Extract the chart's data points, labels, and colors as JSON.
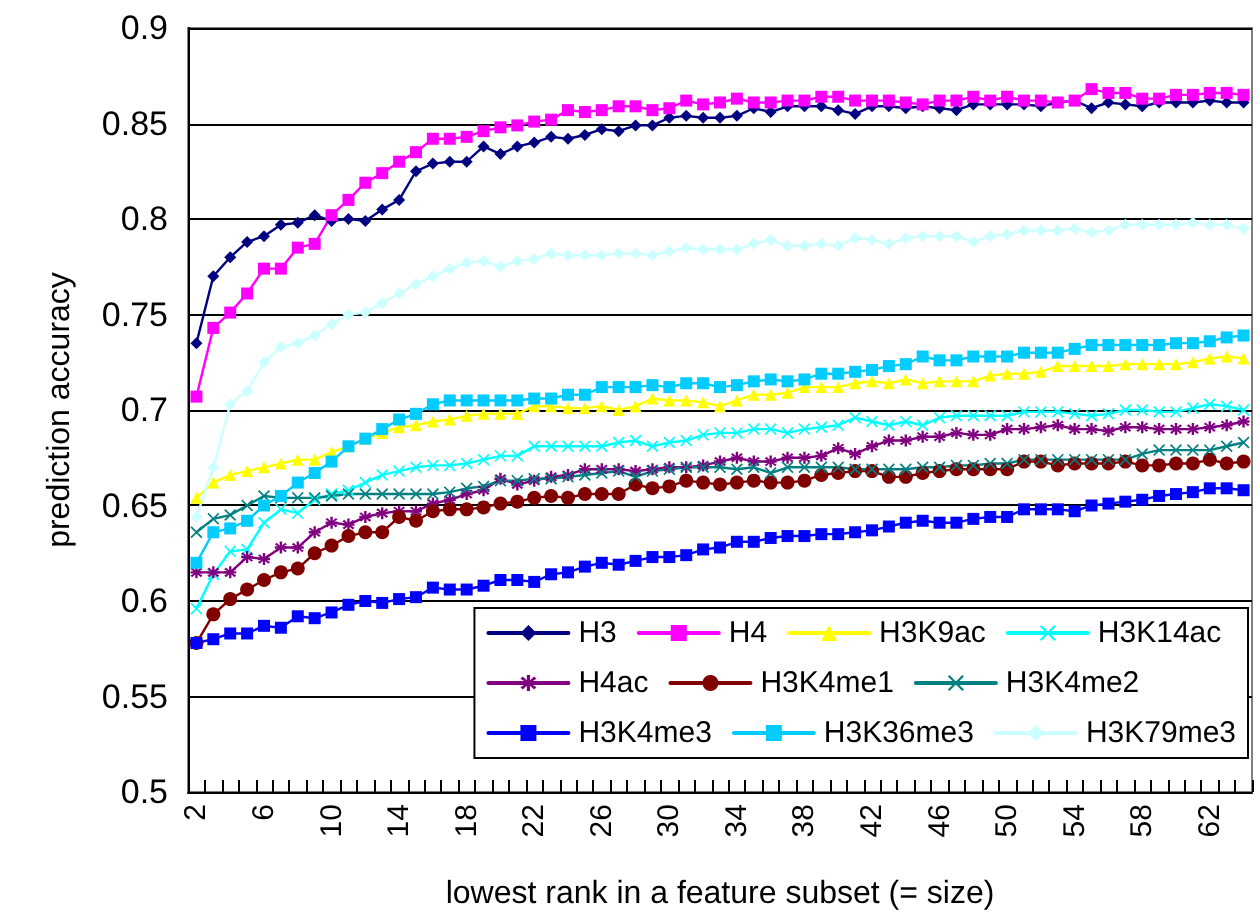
{
  "chart_data": {
    "type": "line",
    "xlabel": "lowest rank in a feature subset (= size)",
    "ylabel": "prediction accuracy",
    "categories": [
      "2",
      null,
      null,
      null,
      "6",
      null,
      null,
      null,
      "10",
      null,
      null,
      null,
      "14",
      null,
      null,
      null,
      "18",
      null,
      null,
      null,
      "22",
      null,
      null,
      null,
      "26",
      null,
      null,
      null,
      "30",
      null,
      null,
      null,
      "34",
      null,
      null,
      null,
      "38",
      null,
      null,
      null,
      "42",
      null,
      null,
      null,
      "46",
      null,
      null,
      null,
      "50",
      null,
      null,
      null,
      "54",
      null,
      null,
      null,
      "58",
      null,
      null,
      null,
      "62",
      null,
      null
    ],
    "ylim": [
      0.5,
      0.9
    ],
    "yticks": [
      0.5,
      0.55,
      0.6,
      0.65,
      0.7,
      0.75,
      0.8,
      0.85,
      0.9
    ],
    "grid": "y",
    "legend": "bottom right",
    "line_style": "solid",
    "series": [
      {
        "name": "H3",
        "color": "#000080",
        "marker": "diamond",
        "values": [
          0.735,
          0.77,
          0.78,
          0.788,
          0.791,
          0.797,
          0.798,
          0.802,
          0.799,
          0.8,
          0.799,
          0.805,
          0.81,
          0.825,
          0.829,
          0.83,
          0.83,
          0.838,
          0.834,
          0.838,
          0.84,
          0.843,
          0.842,
          0.844,
          0.847,
          0.846,
          0.849,
          0.849,
          0.853,
          0.854,
          0.853,
          0.853,
          0.854,
          0.858,
          0.856,
          0.859,
          0.859,
          0.859,
          0.857,
          0.855,
          0.859,
          0.859,
          0.858,
          0.859,
          0.858,
          0.857,
          0.86,
          0.86,
          0.86,
          0.86,
          0.859,
          0.861,
          0.862,
          0.858,
          0.861,
          0.86,
          0.859,
          0.861,
          0.861,
          0.861,
          0.862,
          0.861,
          0.861
        ]
      },
      {
        "name": "H4",
        "color": "#ff00ff",
        "marker": "square",
        "values": [
          0.707,
          0.743,
          0.751,
          0.761,
          0.774,
          0.774,
          0.785,
          0.787,
          0.802,
          0.81,
          0.819,
          0.824,
          0.83,
          0.835,
          0.842,
          0.842,
          0.843,
          0.846,
          0.848,
          0.849,
          0.851,
          0.852,
          0.857,
          0.856,
          0.857,
          0.859,
          0.859,
          0.857,
          0.858,
          0.862,
          0.86,
          0.861,
          0.863,
          0.861,
          0.861,
          0.862,
          0.862,
          0.864,
          0.864,
          0.862,
          0.862,
          0.862,
          0.861,
          0.86,
          0.862,
          0.862,
          0.864,
          0.862,
          0.864,
          0.862,
          0.862,
          0.861,
          0.862,
          0.868,
          0.866,
          0.866,
          0.863,
          0.863,
          0.865,
          0.865,
          0.866,
          0.866,
          0.865
        ]
      },
      {
        "name": "H3K9ac",
        "color": "#ffff00",
        "marker": "triangle",
        "values": [
          0.654,
          0.662,
          0.666,
          0.668,
          0.67,
          0.672,
          0.674,
          0.674,
          0.678,
          0.681,
          0.685,
          0.688,
          0.691,
          0.692,
          0.694,
          0.695,
          0.697,
          0.698,
          0.698,
          0.698,
          0.702,
          0.702,
          0.701,
          0.701,
          0.702,
          0.7,
          0.702,
          0.706,
          0.705,
          0.705,
          0.704,
          0.702,
          0.705,
          0.708,
          0.708,
          0.709,
          0.712,
          0.712,
          0.712,
          0.714,
          0.715,
          0.714,
          0.716,
          0.714,
          0.715,
          0.715,
          0.715,
          0.718,
          0.719,
          0.719,
          0.72,
          0.723,
          0.723,
          0.723,
          0.723,
          0.724,
          0.724,
          0.724,
          0.724,
          0.725,
          0.727,
          0.728,
          0.727
        ]
      },
      {
        "name": "H3K14ac",
        "color": "#00ffff",
        "marker": "cross",
        "values": [
          0.596,
          0.614,
          0.626,
          0.627,
          0.641,
          0.648,
          0.646,
          0.653,
          0.656,
          0.658,
          0.662,
          0.666,
          0.668,
          0.67,
          0.671,
          0.671,
          0.672,
          0.674,
          0.676,
          0.676,
          0.681,
          0.681,
          0.681,
          0.681,
          0.681,
          0.683,
          0.684,
          0.681,
          0.683,
          0.684,
          0.687,
          0.688,
          0.688,
          0.69,
          0.69,
          0.688,
          0.69,
          0.691,
          0.692,
          0.696,
          0.694,
          0.692,
          0.694,
          0.692,
          0.696,
          0.697,
          0.697,
          0.697,
          0.697,
          0.699,
          0.699,
          0.699,
          0.698,
          0.697,
          0.698,
          0.7,
          0.7,
          0.699,
          0.699,
          0.701,
          0.703,
          0.702,
          0.7
        ]
      },
      {
        "name": "H4ac",
        "color": "#800080",
        "marker": "star",
        "values": [
          0.615,
          0.615,
          0.615,
          0.623,
          0.622,
          0.628,
          0.628,
          0.636,
          0.641,
          0.64,
          0.644,
          0.646,
          0.647,
          0.647,
          0.651,
          0.653,
          0.656,
          0.658,
          0.664,
          0.661,
          0.663,
          0.665,
          0.666,
          0.669,
          0.669,
          0.669,
          0.668,
          0.669,
          0.67,
          0.67,
          0.671,
          0.673,
          0.675,
          0.673,
          0.673,
          0.675,
          0.675,
          0.676,
          0.68,
          0.677,
          0.681,
          0.684,
          0.684,
          0.686,
          0.686,
          0.688,
          0.687,
          0.687,
          0.69,
          0.69,
          0.691,
          0.692,
          0.69,
          0.69,
          0.689,
          0.691,
          0.691,
          0.69,
          0.69,
          0.69,
          0.691,
          0.692,
          0.694
        ]
      },
      {
        "name": "H3K4me1",
        "color": "#800000",
        "marker": "circle",
        "values": [
          0.578,
          0.593,
          0.601,
          0.606,
          0.611,
          0.615,
          0.617,
          0.625,
          0.629,
          0.634,
          0.636,
          0.636,
          0.644,
          0.642,
          0.647,
          0.648,
          0.648,
          0.649,
          0.651,
          0.652,
          0.654,
          0.655,
          0.654,
          0.656,
          0.656,
          0.656,
          0.661,
          0.659,
          0.66,
          0.663,
          0.662,
          0.661,
          0.662,
          0.663,
          0.662,
          0.662,
          0.663,
          0.666,
          0.667,
          0.668,
          0.668,
          0.665,
          0.665,
          0.667,
          0.668,
          0.669,
          0.669,
          0.669,
          0.669,
          0.673,
          0.673,
          0.671,
          0.672,
          0.672,
          0.672,
          0.673,
          0.671,
          0.671,
          0.672,
          0.672,
          0.674,
          0.672,
          0.673
        ]
      },
      {
        "name": "H3K4me2",
        "color": "#008080",
        "marker": "cross",
        "values": [
          0.636,
          0.643,
          0.645,
          0.65,
          0.655,
          0.654,
          0.654,
          0.654,
          0.655,
          0.656,
          0.656,
          0.656,
          0.656,
          0.656,
          0.656,
          0.657,
          0.659,
          0.66,
          0.663,
          0.663,
          0.664,
          0.664,
          0.665,
          0.666,
          0.667,
          0.668,
          0.665,
          0.668,
          0.669,
          0.67,
          0.67,
          0.67,
          0.669,
          0.67,
          0.667,
          0.67,
          0.67,
          0.67,
          0.67,
          0.669,
          0.669,
          0.669,
          0.669,
          0.67,
          0.67,
          0.671,
          0.671,
          0.672,
          0.672,
          0.674,
          0.674,
          0.674,
          0.674,
          0.674,
          0.674,
          0.674,
          0.677,
          0.679,
          0.679,
          0.679,
          0.679,
          0.681,
          0.683
        ]
      },
      {
        "name": "H3K4me3",
        "color": "#0000ff",
        "marker": "square",
        "values": [
          0.578,
          0.58,
          0.583,
          0.583,
          0.587,
          0.586,
          0.592,
          0.591,
          0.594,
          0.598,
          0.6,
          0.599,
          0.601,
          0.602,
          0.607,
          0.606,
          0.606,
          0.608,
          0.611,
          0.611,
          0.61,
          0.614,
          0.615,
          0.618,
          0.62,
          0.619,
          0.621,
          0.623,
          0.623,
          0.624,
          0.627,
          0.628,
          0.631,
          0.631,
          0.633,
          0.634,
          0.634,
          0.635,
          0.635,
          0.636,
          0.637,
          0.639,
          0.641,
          0.642,
          0.641,
          0.641,
          0.643,
          0.644,
          0.644,
          0.648,
          0.648,
          0.648,
          0.647,
          0.65,
          0.651,
          0.652,
          0.653,
          0.655,
          0.656,
          0.657,
          0.659,
          0.659,
          0.658
        ]
      },
      {
        "name": "H3K36me3",
        "color": "#00ccff",
        "marker": "square",
        "values": [
          0.62,
          0.636,
          0.638,
          0.642,
          0.65,
          0.655,
          0.662,
          0.667,
          0.673,
          0.681,
          0.685,
          0.69,
          0.695,
          0.698,
          0.703,
          0.705,
          0.705,
          0.705,
          0.705,
          0.705,
          0.706,
          0.706,
          0.708,
          0.708,
          0.712,
          0.712,
          0.712,
          0.713,
          0.712,
          0.714,
          0.714,
          0.712,
          0.713,
          0.715,
          0.716,
          0.715,
          0.716,
          0.719,
          0.719,
          0.72,
          0.721,
          0.723,
          0.724,
          0.728,
          0.726,
          0.726,
          0.728,
          0.728,
          0.728,
          0.73,
          0.73,
          0.73,
          0.732,
          0.734,
          0.734,
          0.734,
          0.734,
          0.734,
          0.735,
          0.735,
          0.736,
          0.738,
          0.739
        ]
      },
      {
        "name": "H3K79me3",
        "color": "#ccffff",
        "marker": "diamond",
        "values": [
          0.644,
          0.67,
          0.703,
          0.71,
          0.725,
          0.733,
          0.735,
          0.739,
          0.745,
          0.75,
          0.751,
          0.756,
          0.761,
          0.766,
          0.77,
          0.774,
          0.777,
          0.778,
          0.775,
          0.778,
          0.779,
          0.782,
          0.781,
          0.781,
          0.781,
          0.782,
          0.782,
          0.781,
          0.783,
          0.785,
          0.784,
          0.784,
          0.784,
          0.787,
          0.789,
          0.786,
          0.786,
          0.787,
          0.786,
          0.79,
          0.789,
          0.787,
          0.79,
          0.791,
          0.791,
          0.791,
          0.788,
          0.791,
          0.792,
          0.794,
          0.794,
          0.794,
          0.795,
          0.793,
          0.794,
          0.797,
          0.797,
          0.797,
          0.797,
          0.798,
          0.797,
          0.797,
          0.795
        ]
      }
    ]
  }
}
